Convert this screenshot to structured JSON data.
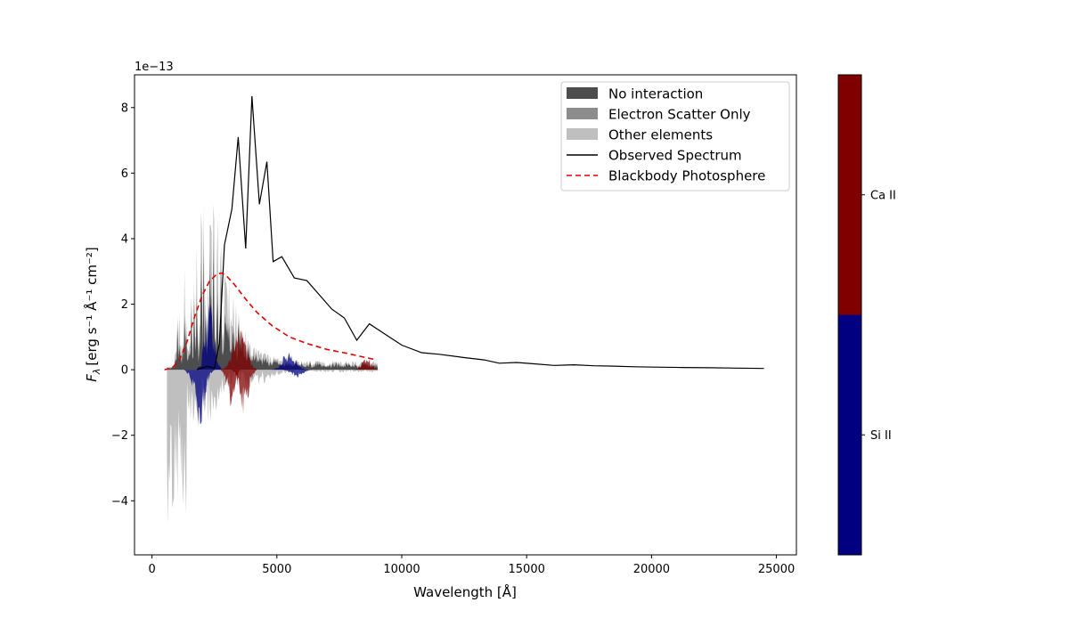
{
  "chart_data": {
    "type": "line",
    "xlabel": "Wavelength [Å]",
    "ylabel_main": "F",
    "ylabel_sub": "λ",
    "ylabel_units": "[erg s⁻¹ Å⁻¹ cm⁻²]",
    "offset_text": "1e−13",
    "xlim": [
      -700,
      25800
    ],
    "ylim": [
      -5.65,
      9.0
    ],
    "x_ticks": [
      0,
      5000,
      10000,
      15000,
      20000,
      25000
    ],
    "x_tick_labels": [
      "0",
      "5000",
      "10000",
      "15000",
      "20000",
      "25000"
    ],
    "y_ticks": [
      -4,
      -2,
      0,
      2,
      4,
      6,
      8
    ],
    "y_tick_labels": [
      "−4",
      "−2",
      "0",
      "2",
      "4",
      "6",
      "8"
    ],
    "grid": false,
    "legend_position": "top-right",
    "legend": [
      {
        "label": "No interaction",
        "kind": "patch",
        "color": "#4d4d4d"
      },
      {
        "label": "Electron Scatter Only",
        "kind": "patch",
        "color": "#8c8c8c"
      },
      {
        "label": "Other elements",
        "kind": "patch",
        "color": "#bfbfbf"
      },
      {
        "label": "Observed Spectrum",
        "kind": "line",
        "color": "#000000",
        "dash": "none"
      },
      {
        "label": "Blackbody Photosphere",
        "kind": "line",
        "color": "#e00000",
        "dash": "6,4"
      }
    ],
    "series": [
      {
        "name": "Observed Spectrum",
        "color": "#000000",
        "x": [
          1800,
          2200,
          2500,
          2700,
          2900,
          3200,
          3450,
          3750,
          4000,
          4300,
          4600,
          4850,
          5200,
          5700,
          6200,
          7200,
          7700,
          8200,
          8700,
          9400,
          10000,
          10800,
          11500,
          12500,
          13300,
          13900,
          14600,
          15300,
          16100,
          16900,
          17700,
          18500,
          19300,
          20100,
          21200,
          22300,
          23400,
          24500
        ],
        "y": [
          0.0,
          0.1,
          0.05,
          0.8,
          3.8,
          4.9,
          7.1,
          3.7,
          8.35,
          5.05,
          6.35,
          3.3,
          3.45,
          2.8,
          2.72,
          1.85,
          1.58,
          0.9,
          1.4,
          1.05,
          0.75,
          0.52,
          0.47,
          0.37,
          0.3,
          0.2,
          0.22,
          0.18,
          0.13,
          0.15,
          0.12,
          0.11,
          0.09,
          0.08,
          0.07,
          0.06,
          0.05,
          0.04
        ]
      },
      {
        "name": "Blackbody Photosphere",
        "color": "#e00000",
        "x": [
          500,
          800,
          1100,
          1400,
          1700,
          2000,
          2300,
          2600,
          2800,
          3000,
          3300,
          3700,
          4200,
          4800,
          5500,
          6200,
          7000,
          7800,
          8500,
          9000
        ],
        "y": [
          0.0,
          0.05,
          0.3,
          0.85,
          1.6,
          2.25,
          2.7,
          2.92,
          2.95,
          2.85,
          2.6,
          2.2,
          1.75,
          1.35,
          1.0,
          0.8,
          0.62,
          0.5,
          0.38,
          0.3
        ]
      }
    ],
    "colorbar": {
      "categories": [
        "Si II",
        "Ca II"
      ],
      "colors": [
        "#000080",
        "#800000"
      ]
    }
  }
}
